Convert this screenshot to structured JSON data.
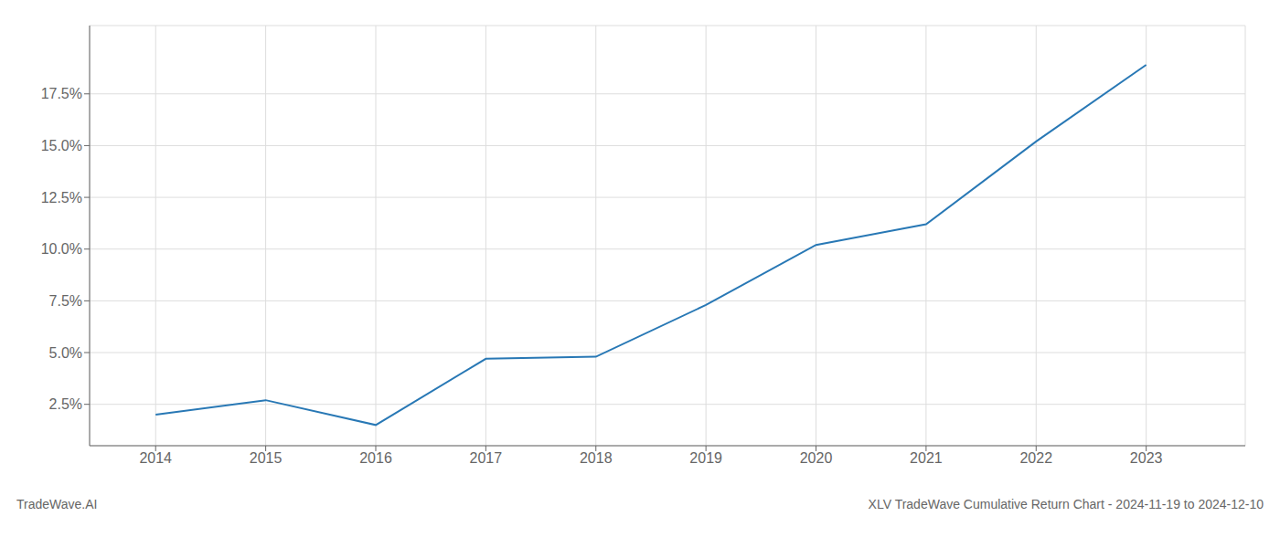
{
  "chart_data": {
    "type": "line",
    "title": "XLV TradeWave Cumulative Return Chart - 2024-11-19 to 2024-12-10",
    "annotations": [
      "TradeWave.AI"
    ],
    "x": [
      2014,
      2015,
      2016,
      2017,
      2018,
      2019,
      2020,
      2021,
      2022,
      2023
    ],
    "values": [
      2.0,
      2.7,
      1.5,
      4.7,
      4.8,
      7.3,
      10.2,
      11.2,
      15.2,
      18.9
    ],
    "color": "#2878b5",
    "xlim": [
      2013.4,
      2023.9
    ],
    "ylim": [
      0.5,
      20.8
    ],
    "xticks": [
      2014,
      2015,
      2016,
      2017,
      2018,
      2019,
      2020,
      2021,
      2022,
      2023
    ],
    "yticks": [
      {
        "value": 2.5,
        "label": "2.5%"
      },
      {
        "value": 5.0,
        "label": "5.0%"
      },
      {
        "value": 7.5,
        "label": "7.5%"
      },
      {
        "value": 10.0,
        "label": "10.0%"
      },
      {
        "value": 12.5,
        "label": "12.5%"
      },
      {
        "value": 15.0,
        "label": "15.0%"
      },
      {
        "value": 17.5,
        "label": "17.5%"
      }
    ],
    "grid": true
  }
}
